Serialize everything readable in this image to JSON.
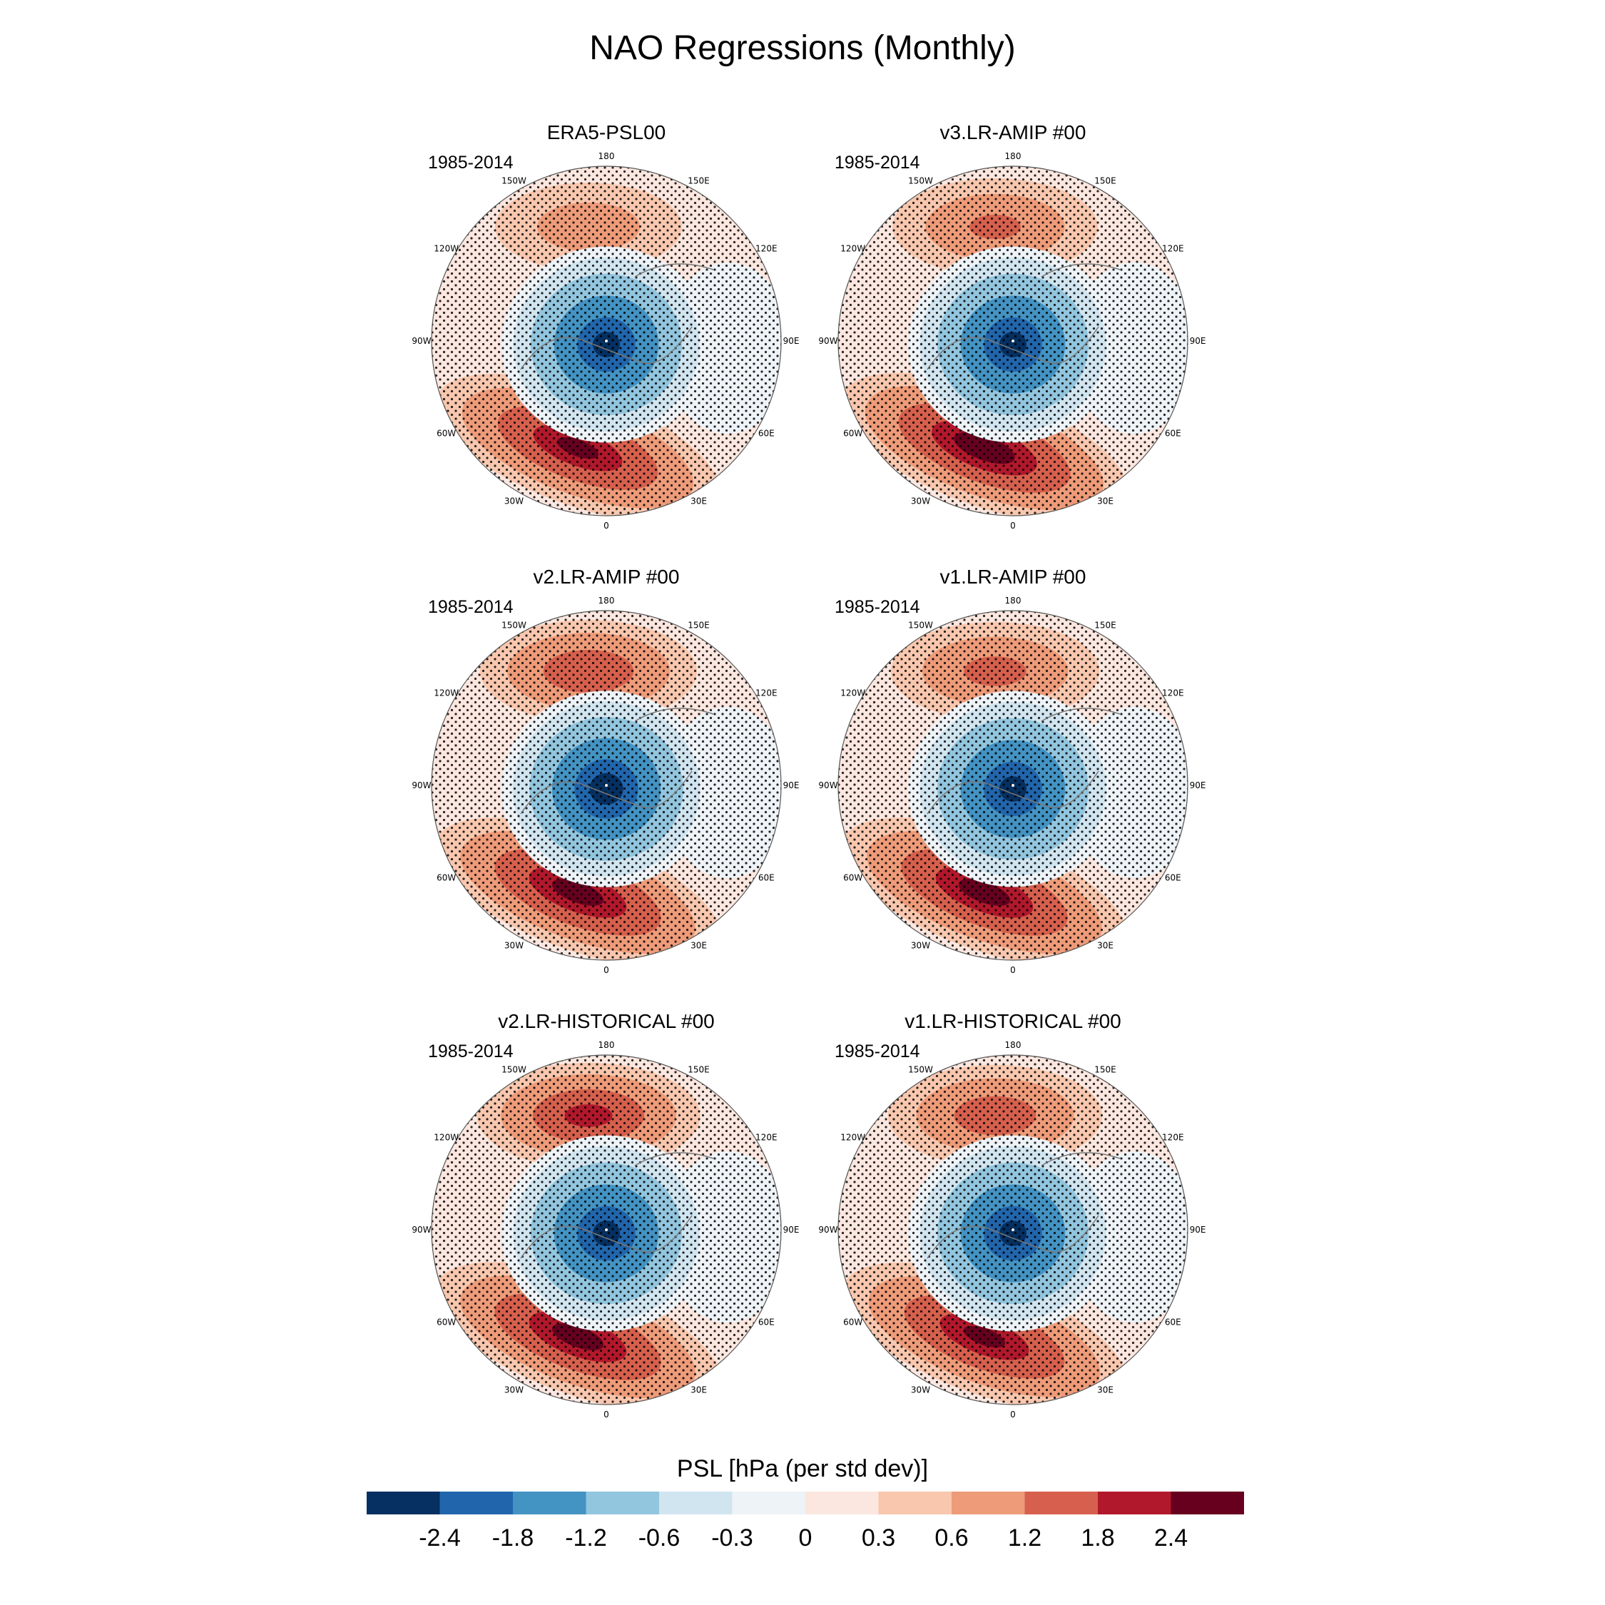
{
  "title": "NAO Regressions (Monthly)",
  "colors": {
    "levels": [
      "#053061",
      "#2166ac",
      "#4393c3",
      "#92c5de",
      "#d1e5f0",
      "#eef3f7",
      "#fbe7df",
      "#f8c7ae",
      "#ee9b79",
      "#d6604d",
      "#b2182b",
      "#67001f"
    ],
    "stipple": "#000000",
    "coast": "#777777"
  },
  "lon_labels": [
    "180",
    "150E",
    "120E",
    "90E",
    "60E",
    "30E",
    "0",
    "30W",
    "60W",
    "90W",
    "120W",
    "150W"
  ],
  "panels": [
    {
      "title": "ERA5-PSL00",
      "years": "1985-2014",
      "pacific_high": 1.2,
      "atlantic_high": 2.6,
      "arctic_low": -2.6
    },
    {
      "title": "v3.LR-AMIP  #00",
      "years": "1985-2014",
      "pacific_high": 1.6,
      "atlantic_high": 2.8,
      "arctic_low": -2.6
    },
    {
      "title": "v2.LR-AMIP  #00",
      "years": "1985-2014",
      "pacific_high": 2.0,
      "atlantic_high": 2.7,
      "arctic_low": -2.7
    },
    {
      "title": "v1.LR-AMIP  #00",
      "years": "1985-2014",
      "pacific_high": 1.7,
      "atlantic_high": 2.7,
      "arctic_low": -2.6
    },
    {
      "title": "v2.LR-HISTORICAL  #00",
      "years": "1985-2014",
      "pacific_high": 2.3,
      "atlantic_high": 2.7,
      "arctic_low": -2.6
    },
    {
      "title": "v1.LR-HISTORICAL  #00",
      "years": "1985-2014",
      "pacific_high": 1.9,
      "atlantic_high": 2.6,
      "arctic_low": -2.6
    }
  ],
  "colorbar": {
    "title": "PSL [hPa (per std dev)]",
    "ticks": [
      "-2.4",
      "-1.8",
      "-1.2",
      "-0.6",
      "-0.3",
      "0",
      "0.3",
      "0.6",
      "1.2",
      "1.8",
      "2.4"
    ],
    "boundaries": [
      -2.4,
      -1.8,
      -1.2,
      -0.6,
      -0.3,
      0,
      0.3,
      0.6,
      1.2,
      1.8,
      2.4
    ]
  }
}
